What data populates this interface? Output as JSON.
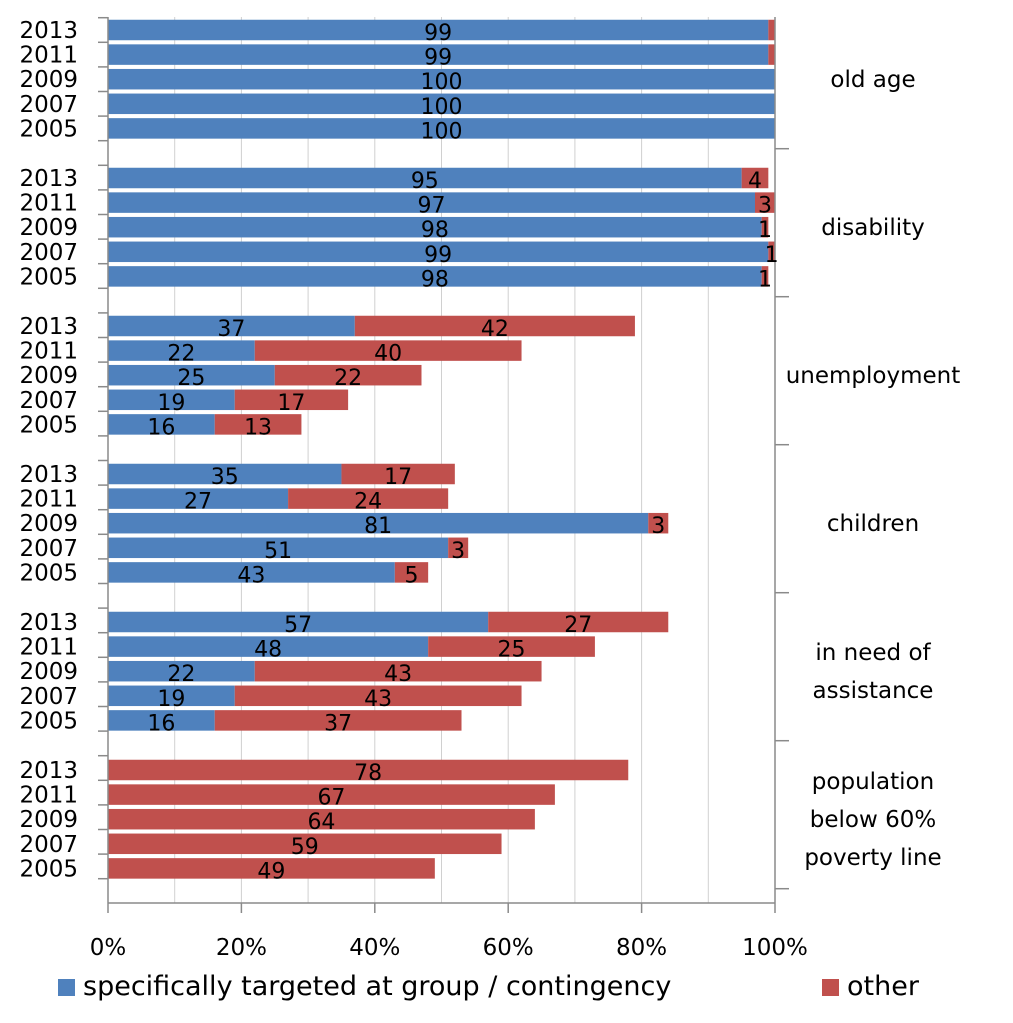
{
  "chart_data": {
    "type": "bar",
    "orientation": "horizontal",
    "stacked": true,
    "xlim": [
      0,
      100
    ],
    "x_ticks": [
      "0%",
      "20%",
      "40%",
      "60%",
      "80%",
      "100%"
    ],
    "grid": "vertical",
    "legend_position": "bottom",
    "colors": {
      "targeted": "#4f81bd",
      "other": "#c0504d"
    },
    "series": [
      {
        "name": "specifically targeted at group / contingency"
      },
      {
        "name": "other"
      }
    ],
    "groups": [
      {
        "label": "old age",
        "bars": [
          {
            "year": "2013",
            "targeted": 99,
            "other": 1,
            "labels": [
              "99",
              null
            ]
          },
          {
            "year": "2011",
            "targeted": 99,
            "other": 1,
            "labels": [
              "99",
              null
            ]
          },
          {
            "year": "2009",
            "targeted": 100,
            "other": 0,
            "labels": [
              "100",
              null
            ]
          },
          {
            "year": "2007",
            "targeted": 100,
            "other": 0,
            "labels": [
              "100",
              null
            ]
          },
          {
            "year": "2005",
            "targeted": 100,
            "other": 0,
            "labels": [
              "100",
              null
            ]
          }
        ]
      },
      {
        "label": "disability",
        "bars": [
          {
            "year": "2013",
            "targeted": 95,
            "other": 4,
            "labels": [
              "95",
              "4"
            ]
          },
          {
            "year": "2011",
            "targeted": 97,
            "other": 3,
            "labels": [
              "97",
              "3"
            ]
          },
          {
            "year": "2009",
            "targeted": 98,
            "other": 1,
            "labels": [
              "98",
              "1"
            ]
          },
          {
            "year": "2007",
            "targeted": 99,
            "other": 1,
            "labels": [
              "99",
              "1"
            ]
          },
          {
            "year": "2005",
            "targeted": 98,
            "other": 1,
            "labels": [
              "98",
              "1"
            ]
          }
        ]
      },
      {
        "label": "unemployment",
        "bars": [
          {
            "year": "2013",
            "targeted": 37,
            "other": 42,
            "labels": [
              "37",
              "42"
            ]
          },
          {
            "year": "2011",
            "targeted": 22,
            "other": 40,
            "labels": [
              "22",
              "40"
            ]
          },
          {
            "year": "2009",
            "targeted": 25,
            "other": 22,
            "labels": [
              "25",
              "22"
            ]
          },
          {
            "year": "2007",
            "targeted": 19,
            "other": 17,
            "labels": [
              "19",
              "17"
            ]
          },
          {
            "year": "2005",
            "targeted": 16,
            "other": 13,
            "labels": [
              "16",
              "13"
            ]
          }
        ]
      },
      {
        "label": "children",
        "bars": [
          {
            "year": "2013",
            "targeted": 35,
            "other": 17,
            "labels": [
              "35",
              "17"
            ]
          },
          {
            "year": "2011",
            "targeted": 27,
            "other": 24,
            "labels": [
              "27",
              "24"
            ]
          },
          {
            "year": "2009",
            "targeted": 81,
            "other": 3,
            "labels": [
              "81",
              "3"
            ]
          },
          {
            "year": "2007",
            "targeted": 51,
            "other": 3,
            "labels": [
              "51",
              "3"
            ]
          },
          {
            "year": "2005",
            "targeted": 43,
            "other": 5,
            "labels": [
              "43",
              "5"
            ]
          }
        ]
      },
      {
        "label": "in need of assistance",
        "label_lines": [
          "in need of",
          "assistance"
        ],
        "bars": [
          {
            "year": "2013",
            "targeted": 57,
            "other": 27,
            "labels": [
              "57",
              "27"
            ]
          },
          {
            "year": "2011",
            "targeted": 48,
            "other": 25,
            "labels": [
              "48",
              "25"
            ]
          },
          {
            "year": "2009",
            "targeted": 22,
            "other": 43,
            "labels": [
              "22",
              "43"
            ]
          },
          {
            "year": "2007",
            "targeted": 19,
            "other": 43,
            "labels": [
              "19",
              "43"
            ]
          },
          {
            "year": "2005",
            "targeted": 16,
            "other": 37,
            "labels": [
              "16",
              "37"
            ]
          }
        ]
      },
      {
        "label": "population below 60% poverty line",
        "label_lines": [
          "population",
          "below 60%",
          "poverty line"
        ],
        "bars": [
          {
            "year": "2013",
            "targeted": 0,
            "other": 78,
            "labels": [
              null,
              "78"
            ]
          },
          {
            "year": "2011",
            "targeted": 0,
            "other": 67,
            "labels": [
              null,
              "67"
            ]
          },
          {
            "year": "2009",
            "targeted": 0,
            "other": 64,
            "labels": [
              null,
              "64"
            ]
          },
          {
            "year": "2007",
            "targeted": 0,
            "other": 59,
            "labels": [
              null,
              "59"
            ]
          },
          {
            "year": "2005",
            "targeted": 0,
            "other": 49,
            "labels": [
              null,
              "49"
            ]
          }
        ]
      }
    ]
  }
}
